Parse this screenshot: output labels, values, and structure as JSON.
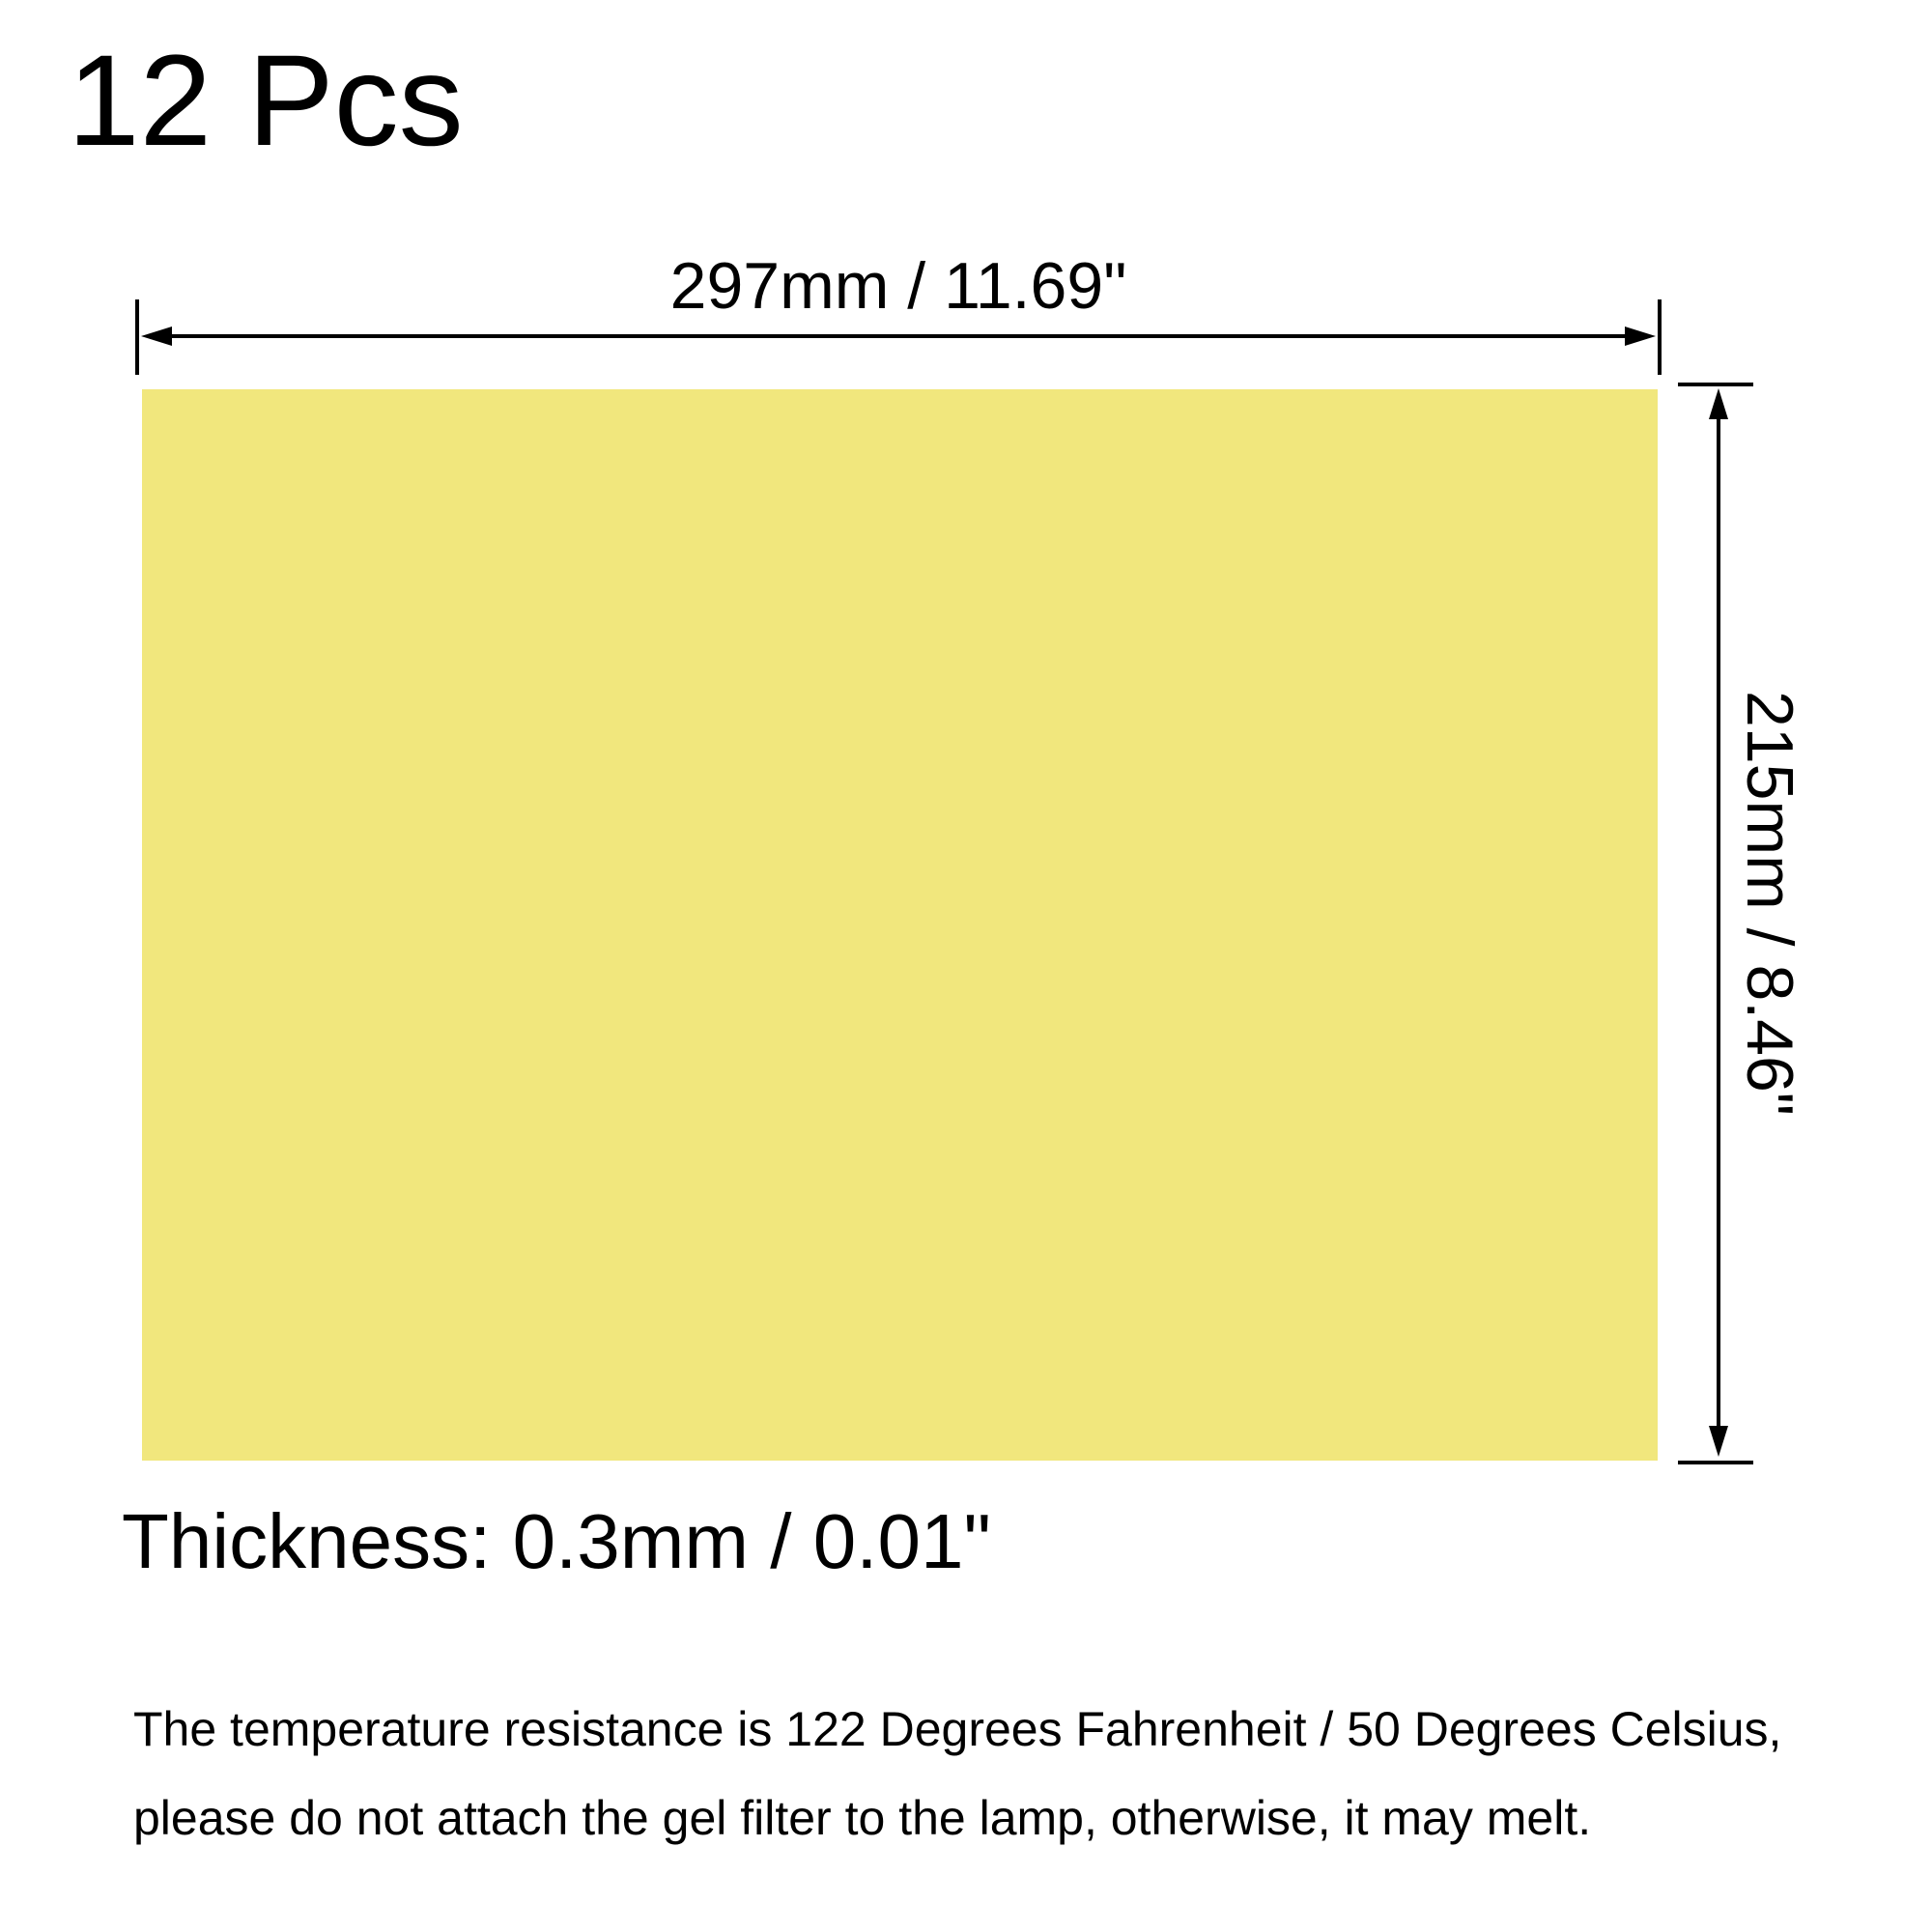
{
  "canvas": {
    "background": "#ffffff",
    "line_color": "#000000",
    "text_color": "#000000"
  },
  "header": {
    "quantity": "12 Pcs"
  },
  "sheet": {
    "color": "#f1e77d"
  },
  "dimensions": {
    "width_label": "297mm / 11.69\"",
    "height_label": "215mm / 8.46\"",
    "thickness_label": "Thickness: 0.3mm / 0.01\""
  },
  "note": {
    "line1": "The temperature resistance is 122 Degrees Fahrenheit / 50 Degrees Celsius,",
    "line2": "please do not attach the gel filter to the lamp, otherwise, it may melt."
  }
}
